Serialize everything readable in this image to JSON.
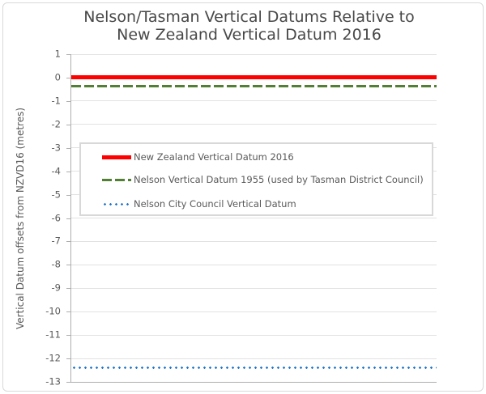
{
  "chart_data": {
    "type": "line",
    "title": "Nelson/Tasman Vertical Datums Relative to New Zealand Vertical Datum 2016",
    "title_lines": [
      "Nelson/Tasman Vertical Datums Relative to",
      "New Zealand Vertical Datum 2016"
    ],
    "xlabel": "",
    "ylabel": "Vertical Datum offsets from NZVD16 (metres)",
    "ylim": [
      -13,
      1
    ],
    "yticks": [
      1,
      0,
      -1,
      -2,
      -3,
      -4,
      -5,
      -6,
      -7,
      -8,
      -9,
      -10,
      -11,
      -12,
      -13
    ],
    "grid": true,
    "legend_position": "inside upper area, boxed",
    "series": [
      {
        "name": "New Zealand Vertical Datum 2016",
        "value": 0,
        "style": "solid",
        "color": "#ff0000"
      },
      {
        "name": "Nelson Vertical Datum 1955 (used by Tasman District Council)",
        "value": -0.35,
        "style": "dashed",
        "color": "#527f33"
      },
      {
        "name": "Nelson City Council Vertical Datum",
        "value": -12.4,
        "style": "dotted",
        "color": "#1b74c8"
      }
    ],
    "notes": "Three constant horizontal offset lines spanning the full x extent; no x-axis labels shown"
  },
  "colors": {
    "title_text": "#484848",
    "axis_text": "#595959",
    "gridline": "#e2e2e2",
    "axis_line": "#aeaeae",
    "legend_border": "#d8d8d8",
    "frame_border": "#d9d9d9",
    "background": "#ffffff"
  }
}
